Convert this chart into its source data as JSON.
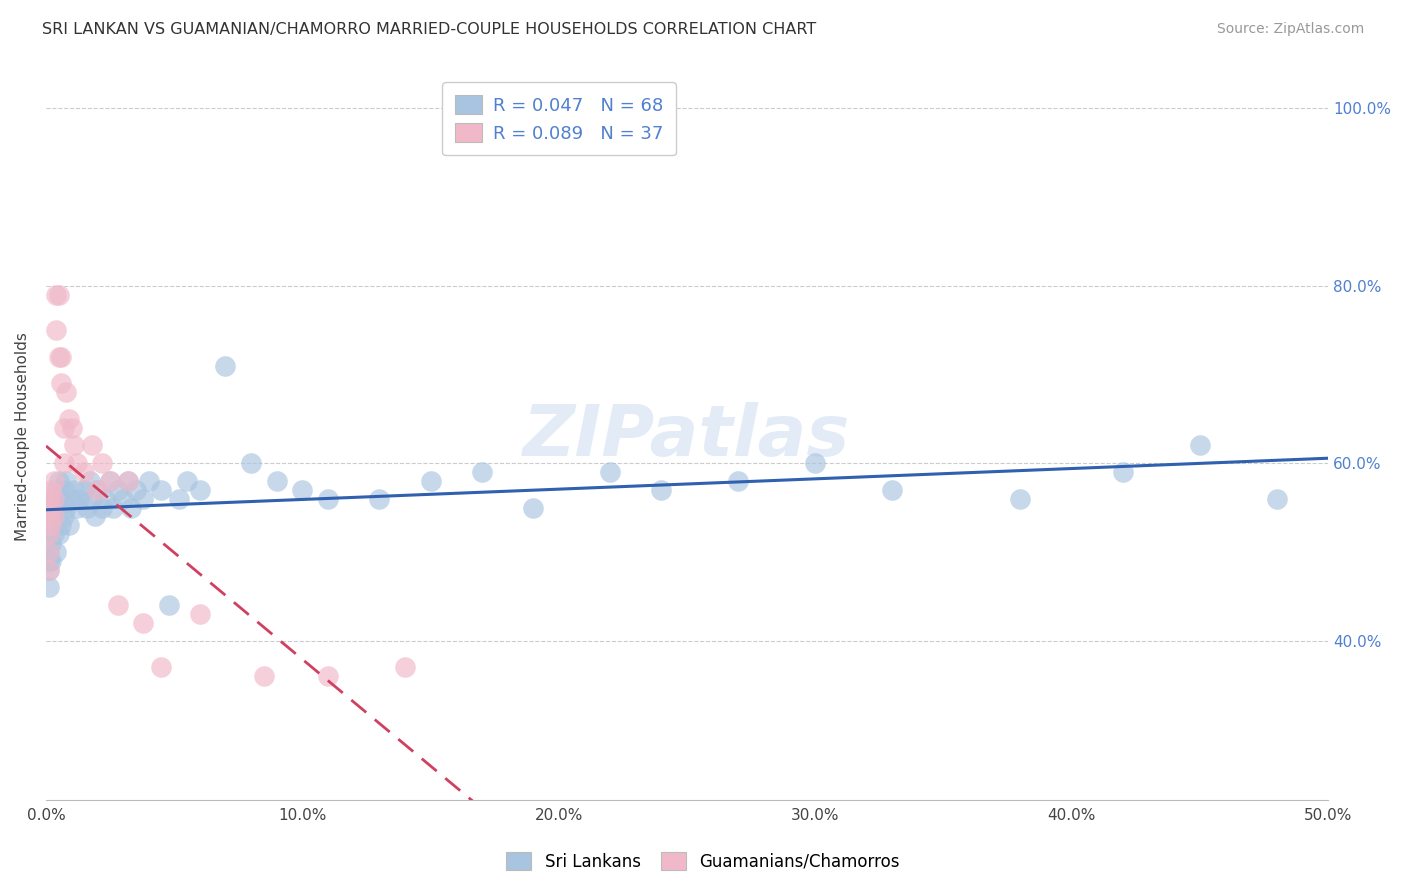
{
  "title": "SRI LANKAN VS GUAMANIAN/CHAMORRO MARRIED-COUPLE HOUSEHOLDS CORRELATION CHART",
  "source": "Source: ZipAtlas.com",
  "ylabel": "Married-couple Households",
  "xlim": [
    0,
    0.5
  ],
  "ylim": [
    0.22,
    1.04
  ],
  "xtick_labels": [
    "0.0%",
    "10.0%",
    "20.0%",
    "30.0%",
    "40.0%",
    "50.0%"
  ],
  "xtick_vals": [
    0.0,
    0.1,
    0.2,
    0.3,
    0.4,
    0.5
  ],
  "ytick_labels": [
    "40.0%",
    "60.0%",
    "80.0%",
    "100.0%"
  ],
  "ytick_vals": [
    0.4,
    0.6,
    0.8,
    1.0
  ],
  "legend_bottom_labels": [
    "Sri Lankans",
    "Guamanians/Chamorros"
  ],
  "blue_color": "#a8c4e0",
  "pink_color": "#f0b8c8",
  "blue_line_color": "#3060b0",
  "pink_line_color": "#d04060",
  "blue_R": 0.047,
  "blue_N": 68,
  "pink_R": 0.089,
  "pink_N": 37,
  "blue_x": [
    0.001,
    0.001,
    0.001,
    0.001,
    0.001,
    0.002,
    0.002,
    0.002,
    0.002,
    0.003,
    0.003,
    0.003,
    0.004,
    0.004,
    0.005,
    0.005,
    0.005,
    0.006,
    0.006,
    0.007,
    0.007,
    0.008,
    0.008,
    0.009,
    0.01,
    0.011,
    0.012,
    0.013,
    0.015,
    0.016,
    0.017,
    0.018,
    0.019,
    0.02,
    0.022,
    0.023,
    0.025,
    0.026,
    0.028,
    0.03,
    0.032,
    0.033,
    0.035,
    0.038,
    0.04,
    0.045,
    0.048,
    0.052,
    0.055,
    0.06,
    0.07,
    0.08,
    0.09,
    0.1,
    0.11,
    0.13,
    0.15,
    0.17,
    0.19,
    0.22,
    0.24,
    0.27,
    0.3,
    0.33,
    0.38,
    0.42,
    0.45,
    0.48
  ],
  "blue_y": [
    0.52,
    0.5,
    0.49,
    0.48,
    0.46,
    0.55,
    0.53,
    0.51,
    0.49,
    0.56,
    0.54,
    0.52,
    0.57,
    0.5,
    0.58,
    0.55,
    0.52,
    0.56,
    0.53,
    0.57,
    0.54,
    0.58,
    0.55,
    0.53,
    0.56,
    0.57,
    0.55,
    0.56,
    0.57,
    0.55,
    0.58,
    0.56,
    0.54,
    0.57,
    0.55,
    0.56,
    0.58,
    0.55,
    0.57,
    0.56,
    0.58,
    0.55,
    0.57,
    0.56,
    0.58,
    0.57,
    0.44,
    0.56,
    0.58,
    0.57,
    0.71,
    0.6,
    0.58,
    0.57,
    0.56,
    0.56,
    0.58,
    0.59,
    0.55,
    0.59,
    0.57,
    0.58,
    0.6,
    0.57,
    0.56,
    0.59,
    0.62,
    0.56
  ],
  "pink_x": [
    0.001,
    0.001,
    0.001,
    0.001,
    0.001,
    0.002,
    0.002,
    0.002,
    0.003,
    0.003,
    0.003,
    0.004,
    0.004,
    0.005,
    0.005,
    0.006,
    0.006,
    0.007,
    0.007,
    0.008,
    0.009,
    0.01,
    0.011,
    0.012,
    0.015,
    0.018,
    0.02,
    0.022,
    0.025,
    0.028,
    0.032,
    0.038,
    0.045,
    0.06,
    0.085,
    0.11,
    0.14
  ],
  "pink_y": [
    0.56,
    0.54,
    0.52,
    0.5,
    0.48,
    0.57,
    0.55,
    0.53,
    0.58,
    0.56,
    0.54,
    0.79,
    0.75,
    0.79,
    0.72,
    0.69,
    0.72,
    0.64,
    0.6,
    0.68,
    0.65,
    0.64,
    0.62,
    0.6,
    0.59,
    0.62,
    0.57,
    0.6,
    0.58,
    0.44,
    0.58,
    0.42,
    0.37,
    0.43,
    0.36,
    0.36,
    0.37
  ]
}
